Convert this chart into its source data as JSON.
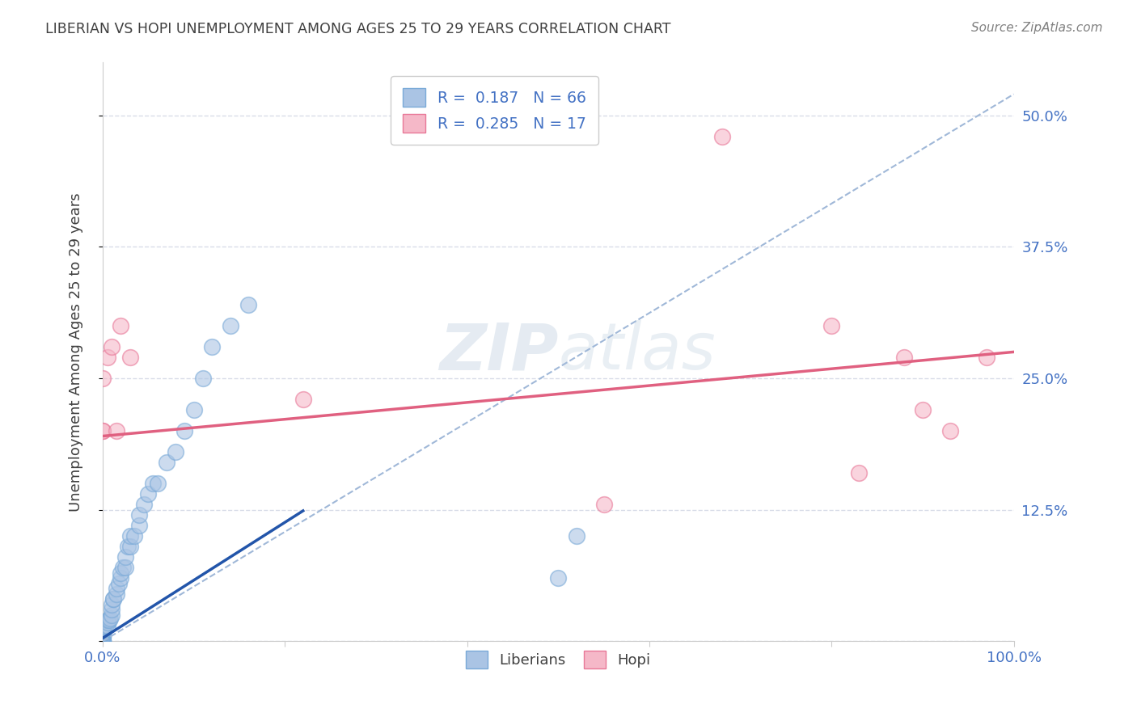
{
  "title": "LIBERIAN VS HOPI UNEMPLOYMENT AMONG AGES 25 TO 29 YEARS CORRELATION CHART",
  "source": "Source: ZipAtlas.com",
  "ylabel": "Unemployment Among Ages 25 to 29 years",
  "xlim": [
    0,
    1.0
  ],
  "ylim": [
    0,
    0.55
  ],
  "xtick_positions": [
    0.0,
    0.2,
    0.4,
    0.6,
    0.8,
    1.0
  ],
  "xticklabels": [
    "0.0%",
    "",
    "",
    "",
    "",
    "100.0%"
  ],
  "ytick_positions": [
    0.0,
    0.125,
    0.25,
    0.375,
    0.5
  ],
  "yticklabels": [
    "",
    "12.5%",
    "25.0%",
    "37.5%",
    "50.0%"
  ],
  "liberian_color": "#aac4e4",
  "liberian_edge_color": "#7aaad8",
  "hopi_color": "#f5b8c8",
  "hopi_edge_color": "#e87898",
  "liberian_line_color": "#2255aa",
  "hopi_line_color": "#e06080",
  "dashed_line_color": "#a0b8d8",
  "background_color": "#ffffff",
  "grid_color": "#d8dce8",
  "watermark_color": "#d0dce8",
  "tick_label_color": "#4472c4",
  "ylabel_color": "#404040",
  "title_color": "#404040",
  "source_color": "#808080",
  "liberian_x": [
    0.0,
    0.0,
    0.0,
    0.0,
    0.0,
    0.0,
    0.0,
    0.0,
    0.0,
    0.0,
    0.0,
    0.0,
    0.0,
    0.0,
    0.0,
    0.0,
    0.0,
    0.0,
    0.0,
    0.0,
    0.0,
    0.0,
    0.0,
    0.0,
    0.0,
    0.0,
    0.0,
    0.0,
    0.005,
    0.005,
    0.005,
    0.007,
    0.008,
    0.01,
    0.01,
    0.01,
    0.012,
    0.012,
    0.015,
    0.015,
    0.018,
    0.02,
    0.02,
    0.022,
    0.025,
    0.025,
    0.028,
    0.03,
    0.03,
    0.035,
    0.04,
    0.04,
    0.045,
    0.05,
    0.055,
    0.06,
    0.07,
    0.08,
    0.09,
    0.1,
    0.11,
    0.12,
    0.14,
    0.16,
    0.5,
    0.52
  ],
  "liberian_y": [
    0.0,
    0.0,
    0.0,
    0.0,
    0.0,
    0.002,
    0.003,
    0.004,
    0.005,
    0.005,
    0.006,
    0.006,
    0.007,
    0.007,
    0.008,
    0.008,
    0.009,
    0.009,
    0.01,
    0.01,
    0.01,
    0.01,
    0.01,
    0.012,
    0.012,
    0.013,
    0.014,
    0.015,
    0.015,
    0.018,
    0.02,
    0.02,
    0.022,
    0.025,
    0.03,
    0.035,
    0.04,
    0.04,
    0.045,
    0.05,
    0.055,
    0.06,
    0.065,
    0.07,
    0.07,
    0.08,
    0.09,
    0.09,
    0.1,
    0.1,
    0.11,
    0.12,
    0.13,
    0.14,
    0.15,
    0.15,
    0.17,
    0.18,
    0.2,
    0.22,
    0.25,
    0.28,
    0.3,
    0.32,
    0.06,
    0.1
  ],
  "hopi_x": [
    0.0,
    0.0,
    0.0,
    0.005,
    0.01,
    0.015,
    0.02,
    0.03,
    0.22,
    0.55,
    0.68,
    0.8,
    0.83,
    0.88,
    0.9,
    0.93,
    0.97
  ],
  "hopi_y": [
    0.2,
    0.2,
    0.25,
    0.27,
    0.28,
    0.2,
    0.3,
    0.27,
    0.23,
    0.13,
    0.48,
    0.3,
    0.16,
    0.27,
    0.22,
    0.2,
    0.27
  ],
  "liberian_line_x": [
    0.0,
    0.22
  ],
  "liberian_line_y_intercept": 0.003,
  "liberian_line_slope": 0.55,
  "hopi_line_y_intercept": 0.195,
  "hopi_line_slope": 0.08,
  "diag_line_x": [
    0.0,
    1.0
  ],
  "diag_line_y": [
    0.0,
    0.52
  ]
}
